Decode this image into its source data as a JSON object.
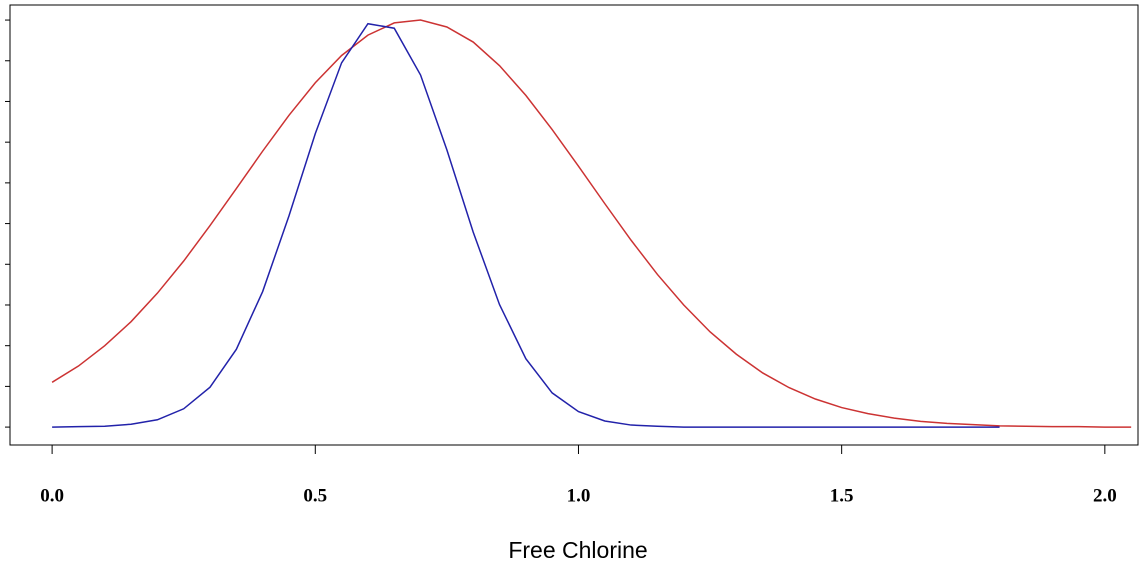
{
  "chart_data": {
    "type": "line",
    "xlabel": "Free Chlorine",
    "xlim": [
      -0.08,
      2.063
    ],
    "xticks": [
      {
        "value": 0,
        "label": "0.0"
      },
      0.5,
      {
        "value": 1,
        "label": "1.0"
      },
      1.5,
      {
        "value": 2,
        "label": "2.0"
      }
    ],
    "ylim": [
      -0.044,
      1.037
    ],
    "yticks": [
      0,
      0.1,
      0.2,
      0.3,
      0.4,
      0.5,
      0.6,
      0.7,
      0.8,
      0.9,
      1.0
    ],
    "series": [
      {
        "color": "#cc3333",
        "x": [
          0,
          0.05,
          0.1,
          0.15,
          0.2,
          0.25,
          0.3,
          0.35,
          0.4,
          0.45,
          0.5,
          0.55,
          0.6,
          0.65,
          0.7,
          0.75,
          0.8,
          0.85,
          0.9,
          0.95,
          1.0,
          1.05,
          1.1,
          1.15,
          1.2,
          1.25,
          1.3,
          1.35,
          1.4,
          1.45,
          1.5,
          1.55,
          1.6,
          1.65,
          1.7,
          1.75,
          1.8,
          1.85,
          1.9,
          1.95,
          2.0,
          2.05
        ],
        "values": [
          0.11,
          0.15,
          0.2,
          0.259,
          0.329,
          0.408,
          0.495,
          0.586,
          0.678,
          0.766,
          0.846,
          0.913,
          0.963,
          0.993,
          1.0,
          0.983,
          0.946,
          0.888,
          0.815,
          0.731,
          0.641,
          0.549,
          0.459,
          0.375,
          0.3,
          0.234,
          0.179,
          0.133,
          0.097,
          0.069,
          0.048,
          0.033,
          0.022,
          0.014,
          0.009,
          0.006,
          0.003,
          0.002,
          0.001,
          0.001,
          0,
          0
        ]
      },
      {
        "color": "#2222aa",
        "x": [
          0,
          0.05,
          0.1,
          0.15,
          0.2,
          0.25,
          0.3,
          0.35,
          0.4,
          0.45,
          0.5,
          0.55,
          0.6,
          0.65,
          0.7,
          0.75,
          0.8,
          0.85,
          0.9,
          0.95,
          1.0,
          1.05,
          1.1,
          1.15,
          1.2,
          1.25,
          1.3,
          1.35,
          1.4,
          1.45,
          1.5,
          1.55,
          1.6,
          1.65,
          1.7,
          1.75,
          1.8
        ],
        "values": [
          0,
          0.001,
          0.002,
          0.007,
          0.018,
          0.045,
          0.098,
          0.191,
          0.333,
          0.519,
          0.721,
          0.895,
          0.991,
          0.98,
          0.865,
          0.681,
          0.479,
          0.301,
          0.168,
          0.084,
          0.038,
          0.015,
          0.005,
          0.002,
          0,
          0,
          0,
          0,
          0,
          0,
          0,
          0,
          0,
          0,
          0,
          0,
          0
        ]
      }
    ]
  }
}
